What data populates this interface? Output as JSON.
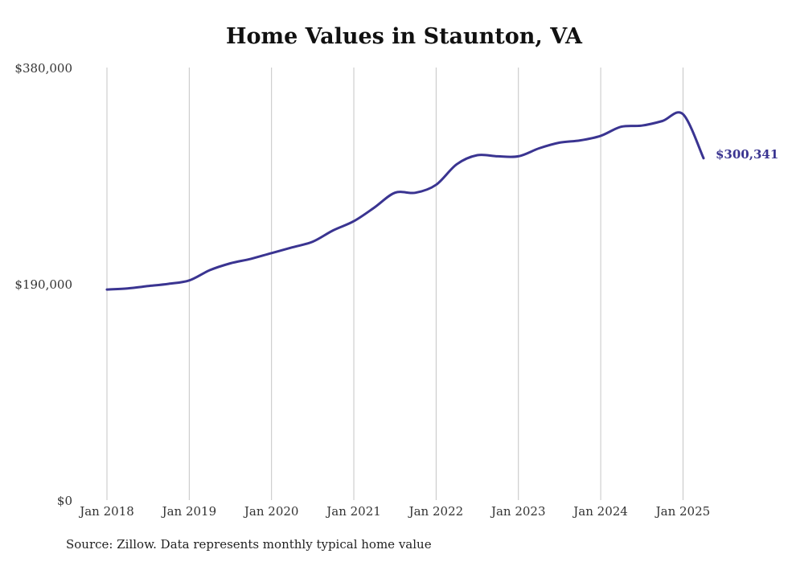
{
  "chart_data": {
    "type": "line",
    "title": "Home Values in Staunton, VA",
    "source": "Source: Zillow. Data represents monthly typical home value",
    "xlabel": "",
    "ylabel": "",
    "ylim": [
      0,
      380000
    ],
    "xlim": [
      "2018-01",
      "2025-04"
    ],
    "yticks": [
      0,
      190000,
      380000
    ],
    "ytick_labels": [
      "$0",
      "$190,000",
      "$380,000"
    ],
    "xticks": [
      "2018-01",
      "2019-01",
      "2020-01",
      "2021-01",
      "2022-01",
      "2023-01",
      "2024-01",
      "2025-01"
    ],
    "xtick_labels": [
      "Jan 2018",
      "Jan 2019",
      "Jan 2020",
      "Jan 2021",
      "Jan 2022",
      "Jan 2023",
      "Jan 2024",
      "Jan 2025"
    ],
    "grid": "vertical",
    "end_label": "$300,341",
    "line_color": "#3a3491",
    "series": [
      {
        "x": [
          "2018-01",
          "2018-04",
          "2018-07",
          "2018-10",
          "2019-01",
          "2019-04",
          "2019-07",
          "2019-10",
          "2020-01",
          "2020-04",
          "2020-07",
          "2020-10",
          "2021-01",
          "2021-04",
          "2021-07",
          "2021-10",
          "2022-01",
          "2022-04",
          "2022-07",
          "2022-10",
          "2023-01",
          "2023-04",
          "2023-07",
          "2023-10",
          "2024-01",
          "2024-04",
          "2024-07",
          "2024-10",
          "2025-01",
          "2025-04"
        ],
        "y": [
          185000,
          186000,
          188000,
          190000,
          193000,
          202000,
          208000,
          212000,
          217000,
          222000,
          227000,
          237000,
          245000,
          257000,
          270000,
          270000,
          277000,
          295000,
          303000,
          302000,
          302000,
          309000,
          314000,
          316000,
          320000,
          328000,
          329000,
          333000,
          339000,
          300341
        ]
      }
    ]
  }
}
